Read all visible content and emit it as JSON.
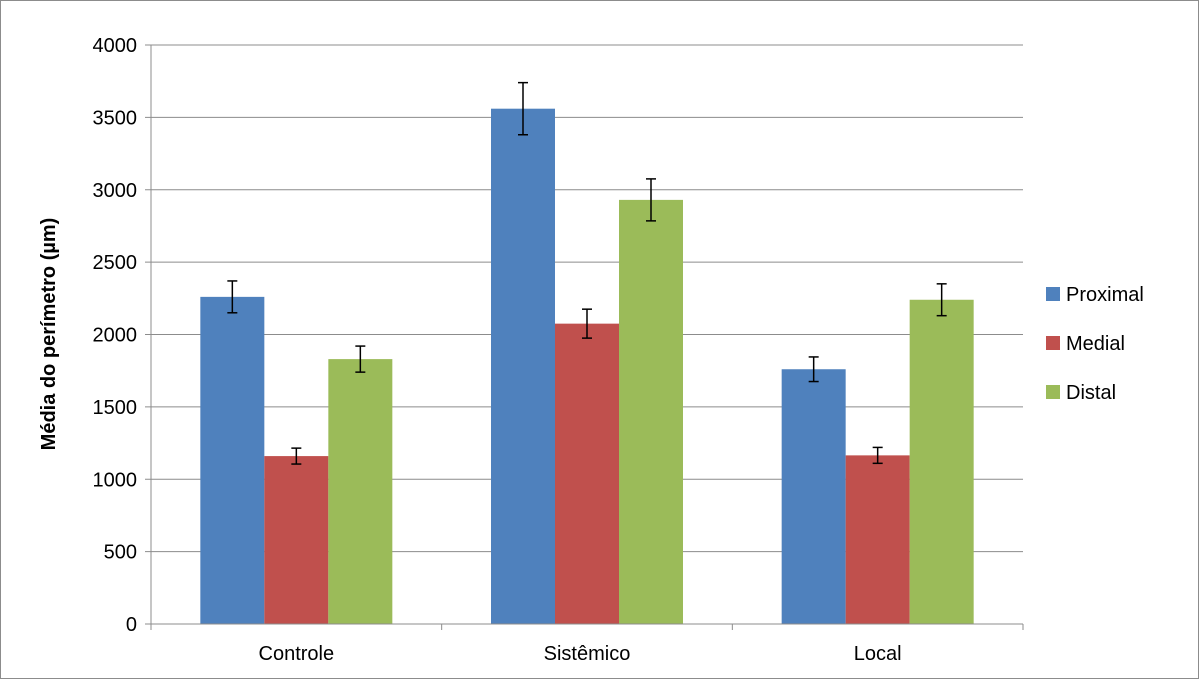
{
  "chart_data": {
    "type": "bar",
    "title": "",
    "xlabel": "",
    "ylabel": "Média do perímetro (µm)",
    "ylim": [
      0,
      4000
    ],
    "ytick_step": 500,
    "yticks": [
      "0",
      "500",
      "1000",
      "1500",
      "2000",
      "2500",
      "3000",
      "3500",
      "4000"
    ],
    "grid": true,
    "legend_position": "right",
    "categories": [
      "Controle",
      "Sistêmico",
      "Local"
    ],
    "series": [
      {
        "name": "Proximal",
        "color": "#4f81bd",
        "values": [
          2260,
          3560,
          1760
        ],
        "errors": [
          110,
          180,
          85
        ]
      },
      {
        "name": "Medial",
        "color": "#c0504d",
        "values": [
          1160,
          2075,
          1165
        ],
        "errors": [
          55,
          100,
          55
        ]
      },
      {
        "name": "Distal",
        "color": "#9bbb59",
        "values": [
          1830,
          2930,
          2240
        ],
        "errors": [
          90,
          145,
          110
        ]
      }
    ]
  }
}
